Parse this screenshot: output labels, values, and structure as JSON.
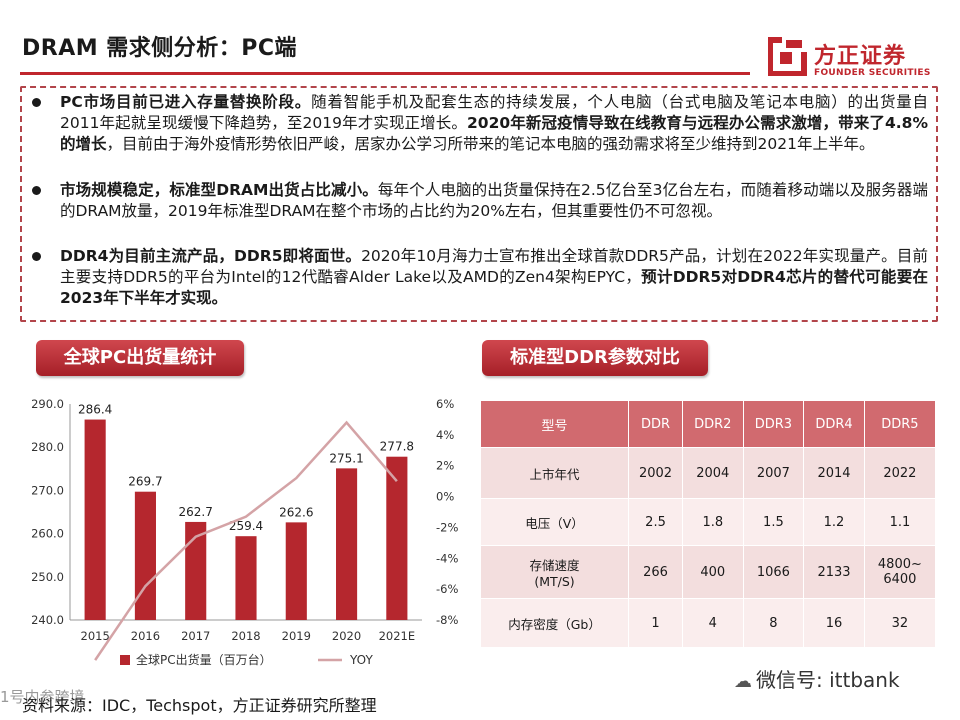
{
  "title": "DRAM 需求侧分析：PC端",
  "logo": {
    "cn": "方正证券",
    "en": "FOUNDER SECURITIES",
    "accent": "#c0262d"
  },
  "bullets": [
    [
      {
        "t": "PC市场目前已进入存量替换阶段。",
        "b": true
      },
      {
        "t": "随着智能手机及配套生态的持续发展，个人电脑（台式电脑及笔记本电脑）的出货量自2011年起就呈现缓慢下降趋势，至2019年才实现正增长。",
        "b": false
      },
      {
        "t": "2020年新冠疫情导致在线教育与远程办公需求激增，带来了4.8%的增长",
        "b": true
      },
      {
        "t": "，目前由于海外疫情形势依旧严峻，居家办公学习所带来的笔记本电脑的强劲需求将至少维持到2021年上半年。",
        "b": false
      }
    ],
    [
      {
        "t": "市场规模稳定，标准型DRAM出货占比减小。",
        "b": true
      },
      {
        "t": "每年个人电脑的出货量保持在2.5亿台至3亿台左右，而随着移动端以及服务器端的DRAM放量，2019年标准型DRAM在整个市场的占比约为20%左右，但其重要性仍不可忽视。",
        "b": false
      }
    ],
    [
      {
        "t": "DDR4为目前主流产品，DDR5即将面世。",
        "b": true
      },
      {
        "t": "2020年10月海力士宣布推出全球首款DDR5产品，计划在2022年实现量产。目前主要支持DDR5的平台为Intel的12代酷睿Alder Lake以及AMD的Zen4架构EPYC，",
        "b": false
      },
      {
        "t": "预计DDR5对DDR4芯片的替代可能要在2023年下半年才实现。",
        "b": true
      }
    ]
  ],
  "sections": {
    "left": "全球PC出货量统计",
    "right": "标准型DDR参数对比"
  },
  "chart_data": {
    "type": "bar",
    "categories": [
      "2015",
      "2016",
      "2017",
      "2018",
      "2019",
      "2020",
      "2021E"
    ],
    "series": [
      {
        "name": "全球PC出货量（百万台）",
        "type": "bar",
        "axis": "left",
        "values": [
          286.4,
          269.7,
          262.7,
          259.4,
          262.6,
          275.1,
          277.8
        ],
        "color": "#b5272e"
      },
      {
        "name": "YOY",
        "type": "line",
        "axis": "right",
        "values": [
          -10.6,
          -5.8,
          -2.6,
          -1.3,
          1.2,
          4.8,
          1.0
        ],
        "color": "#d4a3a6"
      }
    ],
    "ylim_left": [
      240,
      290
    ],
    "yticks_left": [
      "240.0",
      "250.0",
      "260.0",
      "270.0",
      "280.0",
      "290.0"
    ],
    "ylim_right": [
      -8,
      6
    ],
    "yticks_right": [
      "-8%",
      "-6%",
      "-4%",
      "-2%",
      "0%",
      "2%",
      "4%",
      "6%"
    ],
    "legend_placement": "bottom",
    "grid": false
  },
  "table": {
    "headers": [
      "型号",
      "DDR",
      "DDR2",
      "DDR3",
      "DDR4",
      "DDR5"
    ],
    "rows": [
      [
        "上市年代",
        "2002",
        "2004",
        "2007",
        "2014",
        "2022"
      ],
      [
        "电压（V）",
        "2.5",
        "1.8",
        "1.5",
        "1.2",
        "1.1"
      ],
      [
        "存储速度\n(MT/S)",
        "266",
        "400",
        "1066",
        "2133",
        "4800~\n6400"
      ],
      [
        "内存密度（Gb）",
        "1",
        "4",
        "8",
        "16",
        "32"
      ]
    ]
  },
  "source": "资料来源：IDC，Techspot，方正证券研究所整理",
  "wechat": "微信号: ittbank",
  "watermark": "1号内参跨境"
}
